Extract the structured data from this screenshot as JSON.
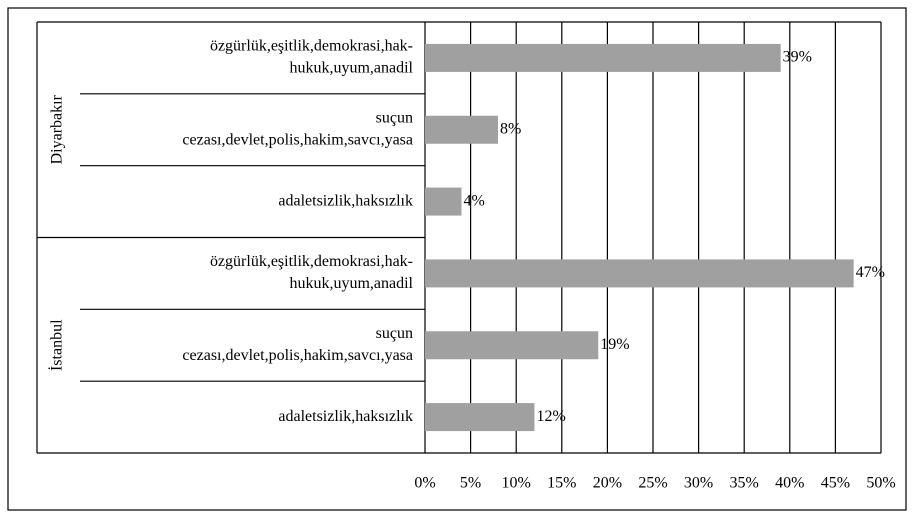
{
  "chart_data": {
    "type": "bar",
    "groups": [
      {
        "name": "Diyarbakır",
        "categories": [
          [
            "özgürlük,eşitlik,demokrasi,hak-",
            "hukuk,uyum,anadil"
          ],
          [
            "suçun",
            "cezası,devlet,polis,hakim,savcı,yasa"
          ],
          [
            "adaletsizlik,haksızlık"
          ]
        ],
        "values": [
          39,
          8,
          4
        ],
        "value_labels": [
          "39%",
          "8%",
          "4%"
        ]
      },
      {
        "name": "İstanbul",
        "categories": [
          [
            "özgürlük,eşitlik,demokrasi,hak-",
            "hukuk,uyum,anadil"
          ],
          [
            "suçun",
            "cezası,devlet,polis,hakim,savcı,yasa"
          ],
          [
            "adaletsizlik,haksızlık"
          ]
        ],
        "values": [
          47,
          19,
          12
        ],
        "value_labels": [
          "47%",
          "19%",
          "12%"
        ]
      }
    ],
    "color": "#a0a0a0",
    "xlim": [
      0,
      50
    ],
    "xticks": [
      {
        "value": 0,
        "label": "0%"
      },
      {
        "value": 5,
        "label": "5%"
      },
      {
        "value": 10,
        "label": "10%"
      },
      {
        "value": 15,
        "label": "15%"
      },
      {
        "value": 20,
        "label": "20%"
      },
      {
        "value": 25,
        "label": "25%"
      },
      {
        "value": 30,
        "label": "30%"
      },
      {
        "value": 35,
        "label": "35%"
      },
      {
        "value": 40,
        "label": "40%"
      },
      {
        "value": 45,
        "label": "45%"
      },
      {
        "value": 50,
        "label": "50%"
      }
    ],
    "grid": true
  }
}
